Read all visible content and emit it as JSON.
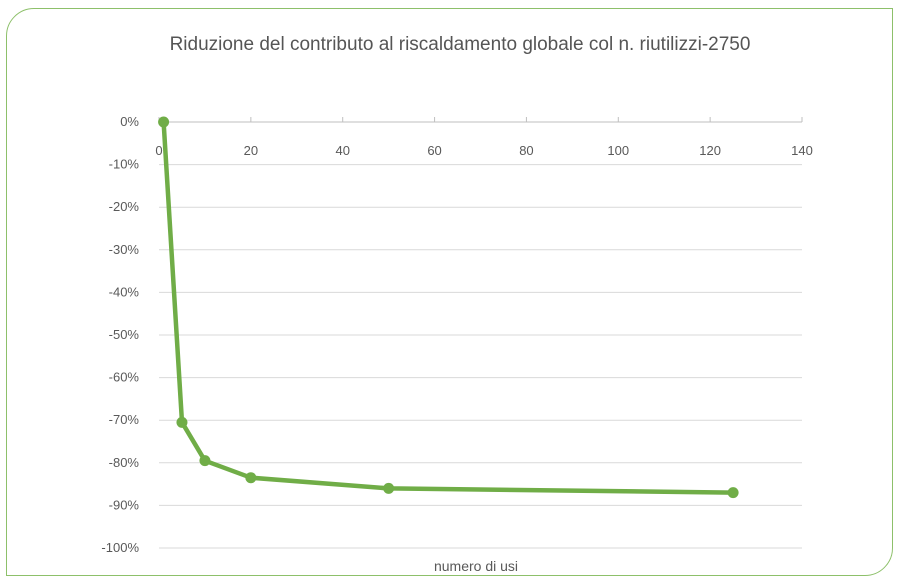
{
  "chart_data": {
    "type": "line",
    "title": "Riduzione del contributo al riscaldamento globale col n. riutilizzi-2750",
    "xlabel": "numero di usi",
    "ylabel": "",
    "xlim": [
      0,
      140
    ],
    "ylim": [
      -100,
      0
    ],
    "x_ticks": [
      0,
      20,
      40,
      60,
      80,
      100,
      120,
      140
    ],
    "y_ticks": [
      0,
      -10,
      -20,
      -30,
      -40,
      -50,
      -60,
      -70,
      -80,
      -90,
      -100
    ],
    "y_tick_labels": [
      "0%",
      "-10%",
      "-20%",
      "-30%",
      "-40%",
      "-50%",
      "-60%",
      "-70%",
      "-80%",
      "-90%",
      "-100%"
    ],
    "x_axis_position": "top",
    "grid": "horizontal",
    "series": [
      {
        "color": "#70ad47",
        "x": [
          1,
          5,
          10,
          20,
          50,
          125
        ],
        "y": [
          0,
          -70.5,
          -79.5,
          -83.5,
          -86,
          -87
        ]
      }
    ]
  }
}
